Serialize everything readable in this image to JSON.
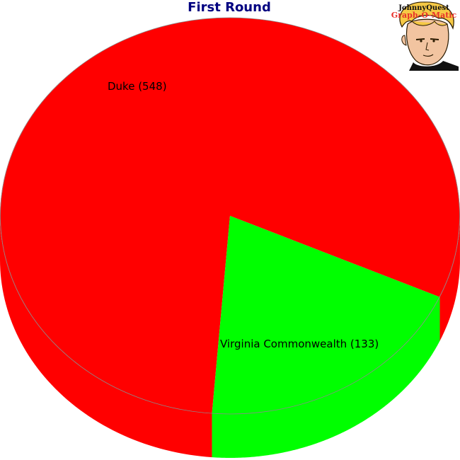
{
  "chart_data": {
    "type": "pie",
    "title": "First Round",
    "categories": [
      "Duke",
      "Virginia Commonwealth"
    ],
    "values": [
      548,
      133
    ],
    "labels": [
      "Duke (548)",
      "Virginia Commonwealth (133)"
    ],
    "colors": [
      "#ff0000",
      "#00ff00"
    ],
    "style": "3d",
    "legend": "none"
  },
  "colors": {
    "title": "#000080",
    "logo_accent": "#e8302a",
    "edge": "#8a8a8a"
  },
  "logo": {
    "line1": "JohnnyQuest",
    "line2": "Graph-O-Matic"
  }
}
